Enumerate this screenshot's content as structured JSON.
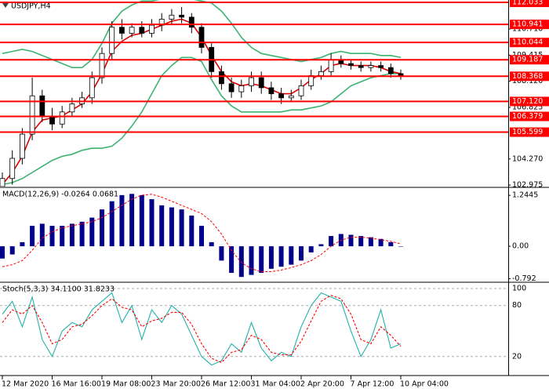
{
  "chart_data": [
    {
      "type": "candlestick",
      "title": "USDJPY,H4",
      "categories": [
        "12 Mar 2020",
        null,
        null,
        null,
        null,
        "16 Mar 16:00",
        null,
        null,
        null,
        null,
        "19 Mar 08:00",
        null,
        null,
        null,
        null,
        "23 Mar 20:00",
        null,
        null,
        null,
        null,
        "26 Mar 12:00",
        null,
        null,
        null,
        null,
        "31 Mar 04:00",
        null,
        null,
        null,
        null,
        "2 Apr 20:00",
        null,
        null,
        null,
        null,
        "7 Apr 12:00",
        null,
        null,
        null,
        null,
        "10 Apr 04:00"
      ],
      "open": [
        102.9,
        103.3,
        104.3,
        105.5,
        107.4,
        106.4,
        106.0,
        106.6,
        107.0,
        107.3,
        108.3,
        109.5,
        110.8,
        110.5,
        110.8,
        110.5,
        110.9,
        111.2,
        111.4,
        111.3,
        110.8,
        109.8,
        108.6,
        108.0,
        107.6,
        107.9,
        108.3,
        107.8,
        107.5,
        107.3,
        107.4,
        107.9,
        108.4,
        108.6,
        109.2,
        109.0,
        108.9,
        108.8,
        108.9,
        108.8,
        108.5
      ],
      "high": [
        103.6,
        104.7,
        105.8,
        108.3,
        107.7,
        106.8,
        106.9,
        107.3,
        107.6,
        108.6,
        109.8,
        111.1,
        111.2,
        111.0,
        111.1,
        111.2,
        111.5,
        111.7,
        111.8,
        111.5,
        111.0,
        110.0,
        108.9,
        108.3,
        108.2,
        108.6,
        108.6,
        108.1,
        107.8,
        107.7,
        108.2,
        108.7,
        108.9,
        109.5,
        109.4,
        109.2,
        109.1,
        109.1,
        109.1,
        109.0,
        108.7
      ],
      "low": [
        102.7,
        103.0,
        104.0,
        105.2,
        106.1,
        105.7,
        105.8,
        106.4,
        106.8,
        107.0,
        108.0,
        109.2,
        110.2,
        110.3,
        110.3,
        110.3,
        110.6,
        110.9,
        111.0,
        110.5,
        109.5,
        108.3,
        107.7,
        107.3,
        107.3,
        107.6,
        107.5,
        107.2,
        107.0,
        107.1,
        107.2,
        107.7,
        108.2,
        108.4,
        108.8,
        108.7,
        108.6,
        108.6,
        108.6,
        108.3,
        108.2
      ],
      "close": [
        103.3,
        104.3,
        105.5,
        107.4,
        106.4,
        106.0,
        106.6,
        107.0,
        107.3,
        108.3,
        109.5,
        110.8,
        110.5,
        110.8,
        110.5,
        110.9,
        111.2,
        111.4,
        111.3,
        110.8,
        109.8,
        108.6,
        108.0,
        107.6,
        107.9,
        108.3,
        107.8,
        107.5,
        107.3,
        107.4,
        107.9,
        108.4,
        108.6,
        109.2,
        109.0,
        108.9,
        108.8,
        108.9,
        108.8,
        108.5,
        108.4
      ],
      "up_color": "#ffffff",
      "down_color": "#000000",
      "overlays": [
        {
          "color": "#3cb371",
          "values": [
            109.5,
            109.6,
            109.7,
            109.6,
            109.4,
            109.2,
            109.0,
            108.8,
            108.8,
            109.2,
            110.0,
            111.0,
            111.6,
            111.9,
            112.1,
            112.1,
            112.2,
            112.2,
            112.2,
            112.2,
            112.1,
            112.0,
            111.6,
            111.0,
            110.3,
            109.8,
            109.5,
            109.4,
            109.3,
            109.2,
            109.1,
            109.2,
            109.3,
            109.5,
            109.6,
            109.5,
            109.5,
            109.5,
            109.4,
            109.4,
            109.3
          ]
        },
        {
          "color": "#3cb371",
          "values": [
            103.0,
            103.1,
            103.3,
            103.6,
            103.9,
            104.2,
            104.4,
            104.5,
            104.7,
            104.8,
            104.8,
            104.9,
            105.3,
            105.9,
            106.6,
            107.5,
            108.4,
            108.9,
            109.3,
            109.3,
            109.1,
            108.2,
            107.4,
            106.9,
            106.6,
            106.6,
            106.6,
            106.6,
            106.6,
            106.7,
            106.7,
            106.8,
            106.9,
            107.1,
            107.5,
            107.9,
            108.1,
            108.3,
            108.4,
            108.5,
            108.5
          ]
        },
        {
          "color": "#e00000",
          "values": [
            103.0,
            103.6,
            104.4,
            105.6,
            106.2,
            106.3,
            106.4,
            106.7,
            107.0,
            107.6,
            108.5,
            109.6,
            110.1,
            110.4,
            110.5,
            110.7,
            110.9,
            111.1,
            111.2,
            111.0,
            110.3,
            109.4,
            108.6,
            108.1,
            107.9,
            108.0,
            107.9,
            107.7,
            107.5,
            107.5,
            107.8,
            108.2,
            108.5,
            108.9,
            109.0,
            108.9,
            108.9,
            108.9,
            108.8,
            108.6,
            108.5
          ]
        }
      ],
      "levels": [
        112.033,
        110.941,
        110.044,
        109.187,
        108.368,
        {
          "value": 107.12,
          "label": "107.120"
        },
        106.379,
        105.599
      ],
      "level_color": "#ff0000",
      "ylim": [
        102.9,
        112.15
      ],
      "yticks": [
        {
          "value": 110.71,
          "label": "110.710"
        },
        109.415,
        {
          "value": 108.12,
          "label": "108.120"
        },
        106.825,
        {
          "value": 104.27,
          "label": "104.270"
        },
        102.975
      ]
    },
    {
      "type": "bar",
      "title": "MACD(12,26,9) -0.0264 0.0681",
      "series": [
        {
          "style": "bar",
          "color": "#00008b",
          "values": [
            -0.3,
            -0.2,
            0.1,
            0.5,
            0.55,
            0.5,
            0.5,
            0.55,
            0.6,
            0.7,
            0.9,
            1.1,
            1.25,
            1.28,
            1.25,
            1.15,
            1.0,
            0.95,
            0.9,
            0.75,
            0.5,
            0.1,
            -0.35,
            -0.65,
            -0.75,
            -0.7,
            -0.65,
            -0.55,
            -0.5,
            -0.45,
            -0.35,
            -0.15,
            0.05,
            0.25,
            0.3,
            0.28,
            0.25,
            0.22,
            0.18,
            0.1,
            0.0
          ]
        },
        {
          "style": "dashed",
          "color": "#ff0000",
          "values": [
            -0.5,
            -0.45,
            -0.35,
            -0.1,
            0.2,
            0.35,
            0.45,
            0.5,
            0.55,
            0.6,
            0.7,
            0.85,
            1.0,
            1.15,
            1.25,
            1.27,
            1.2,
            1.1,
            1.0,
            0.9,
            0.8,
            0.6,
            0.3,
            -0.1,
            -0.4,
            -0.55,
            -0.62,
            -0.62,
            -0.58,
            -0.52,
            -0.45,
            -0.35,
            -0.2,
            0.0,
            0.15,
            0.22,
            0.22,
            0.2,
            0.16,
            0.12,
            0.06
          ]
        }
      ],
      "ylim": [
        -0.86,
        1.42
      ],
      "yticks": [
        1.2445,
        {
          "value": 0,
          "label": "0.00"
        },
        -0.792
      ]
    },
    {
      "type": "line",
      "title": "Stoch(5,3,3) 34.1100 31.8233",
      "series": [
        {
          "style": "solid",
          "color": "#20b2aa",
          "values": [
            70,
            85,
            55,
            90,
            40,
            20,
            50,
            60,
            55,
            75,
            85,
            95,
            60,
            80,
            40,
            75,
            60,
            80,
            70,
            45,
            20,
            10,
            15,
            35,
            25,
            60,
            30,
            15,
            25,
            20,
            55,
            80,
            95,
            90,
            85,
            50,
            20,
            40,
            75,
            30,
            35
          ]
        },
        {
          "style": "dashed",
          "color": "#ff0000",
          "values": [
            60,
            75,
            70,
            80,
            60,
            35,
            40,
            55,
            58,
            68,
            80,
            88,
            78,
            75,
            55,
            62,
            65,
            72,
            72,
            58,
            35,
            18,
            13,
            25,
            28,
            45,
            40,
            25,
            22,
            22,
            38,
            62,
            85,
            92,
            88,
            70,
            40,
            35,
            55,
            45,
            32
          ]
        }
      ],
      "ylim": [
        -1.4,
        106.5
      ],
      "yticks": [
        100,
        80,
        20
      ],
      "grid": true
    }
  ]
}
